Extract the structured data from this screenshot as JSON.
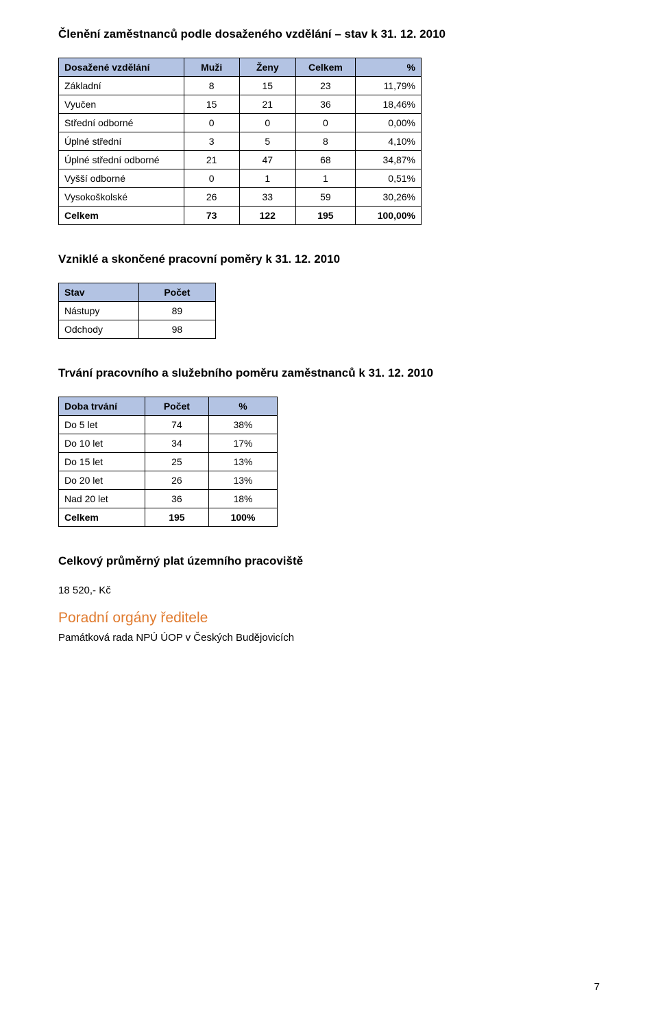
{
  "page_number": "7",
  "section1": {
    "heading": "Členění zaměstnanců podle dosaženého vzdělání – stav k 31. 12. 2010",
    "columns": [
      "Dosažené vzdělání",
      "Muži",
      "Ženy",
      "Celkem",
      "%"
    ],
    "rows": [
      [
        "Základní",
        "8",
        "15",
        "23",
        "11,79%"
      ],
      [
        "Vyučen",
        "15",
        "21",
        "36",
        "18,46%"
      ],
      [
        "Střední odborné",
        "0",
        "0",
        "0",
        "0,00%"
      ],
      [
        "Úplné střední",
        "3",
        "5",
        "8",
        "4,10%"
      ],
      [
        "Úplné střední odborné",
        "21",
        "47",
        "68",
        "34,87%"
      ],
      [
        "Vyšší odborné",
        "0",
        "1",
        "1",
        "0,51%"
      ],
      [
        "Vysokoškolské",
        "26",
        "33",
        "59",
        "30,26%"
      ]
    ],
    "totals": [
      "Celkem",
      "73",
      "122",
      "195",
      "100,00%"
    ]
  },
  "section2": {
    "heading": "Vzniklé a skončené pracovní poměry k 31. 12. 2010",
    "columns": [
      "Stav",
      "Počet"
    ],
    "rows": [
      [
        "Nástupy",
        "89"
      ],
      [
        "Odchody",
        "98"
      ]
    ]
  },
  "section3": {
    "heading": "Trvání pracovního a služebního poměru zaměstnanců k 31. 12. 2010",
    "columns": [
      "Doba trvání",
      "Počet",
      "%"
    ],
    "rows": [
      [
        "Do 5 let",
        "74",
        "38%"
      ],
      [
        "Do 10 let",
        "34",
        "17%"
      ],
      [
        "Do 15 let",
        "25",
        "13%"
      ],
      [
        "Do 20 let",
        "26",
        "13%"
      ],
      [
        "Nad 20 let",
        "36",
        "18%"
      ]
    ],
    "totals": [
      "Celkem",
      "195",
      "100%"
    ]
  },
  "section4": {
    "heading": "Celkový průměrný plat územního pracoviště",
    "value": "18 520,- Kč"
  },
  "section5": {
    "heading": "Poradní orgány ředitele",
    "body": "Památková rada NPÚ ÚOP v Českých Budějovicích"
  },
  "colors": {
    "header_bg": "#b3c3e3",
    "orange": "#e07b2f",
    "border": "#000000",
    "text": "#000000",
    "background": "#ffffff"
  },
  "typography": {
    "heading_bold_pt": 17,
    "table_cell_pt": 14,
    "orange_heading_pt": 21,
    "body_pt": 15
  }
}
